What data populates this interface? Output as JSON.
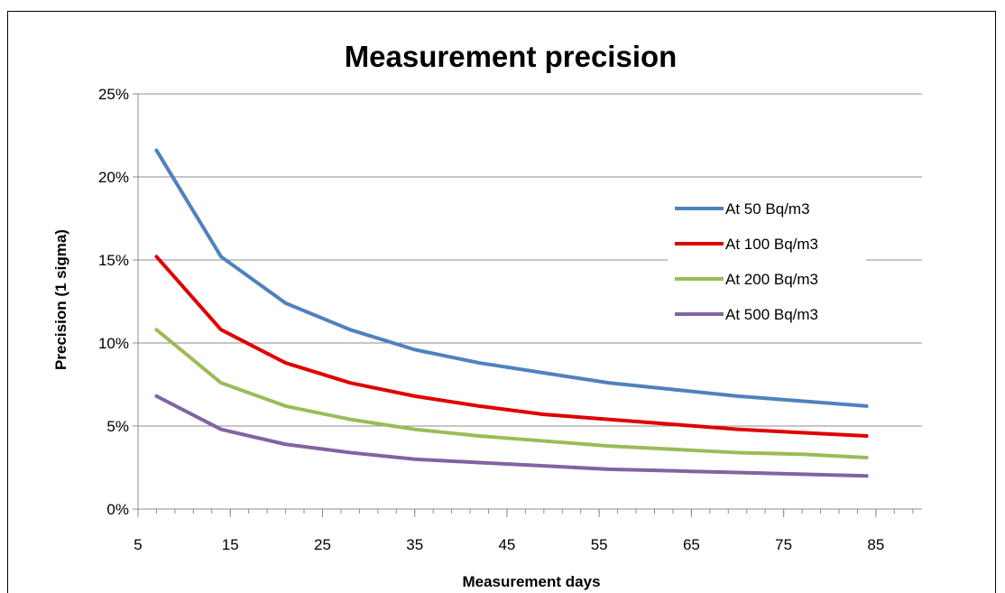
{
  "chart_data": {
    "type": "line",
    "title": "Measurement precision",
    "xlabel": "Measurement days",
    "ylabel": "Precision (1 sigma)",
    "x": [
      7,
      14,
      21,
      28,
      35,
      42,
      49,
      56,
      63,
      70,
      77,
      84
    ],
    "xlim": [
      5,
      90
    ],
    "ylim": [
      0,
      25
    ],
    "x_ticks": [
      5,
      15,
      25,
      35,
      45,
      55,
      65,
      75,
      85
    ],
    "x_tick_labels": [
      "5",
      "15",
      "25",
      "35",
      "45",
      "55",
      "65",
      "75",
      "85"
    ],
    "y_ticks": [
      0,
      5,
      10,
      15,
      20,
      25
    ],
    "y_tick_labels": [
      "0%",
      "5%",
      "10%",
      "15%",
      "20%",
      "25%"
    ],
    "grid": true,
    "legend_position": "right",
    "series": [
      {
        "name": "At 50 Bq/m3",
        "color": "#4f81bd",
        "values": [
          21.6,
          15.2,
          12.4,
          10.8,
          9.6,
          8.8,
          8.2,
          7.6,
          7.2,
          6.8,
          6.5,
          6.2
        ]
      },
      {
        "name": "At 100 Bq/m3",
        "color": "#e00000",
        "values": [
          15.2,
          10.8,
          8.8,
          7.6,
          6.8,
          6.2,
          5.7,
          5.4,
          5.1,
          4.8,
          4.6,
          4.4
        ]
      },
      {
        "name": "At 200 Bq/m3",
        "color": "#9bbb59",
        "values": [
          10.8,
          7.6,
          6.2,
          5.4,
          4.8,
          4.4,
          4.1,
          3.8,
          3.6,
          3.4,
          3.3,
          3.1
        ]
      },
      {
        "name": "At 500 Bq/m3",
        "color": "#8064a2",
        "values": [
          6.8,
          4.8,
          3.9,
          3.4,
          3.0,
          2.8,
          2.6,
          2.4,
          2.3,
          2.2,
          2.1,
          2.0
        ]
      }
    ]
  }
}
